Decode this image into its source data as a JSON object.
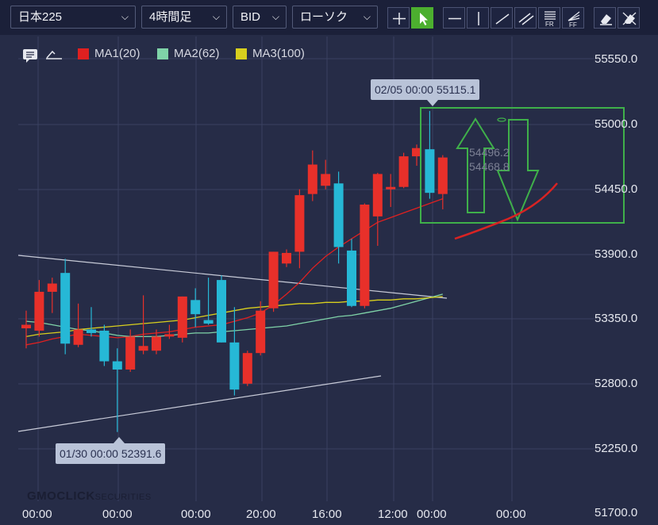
{
  "toolbar": {
    "symbol": "日本225",
    "timeframe": "4時間足",
    "price_type": "BID",
    "chart_style": "ローソク",
    "tools": [
      "crosshair-icon",
      "pointer-icon",
      "horizontal-line-icon",
      "vertical-line-icon",
      "trend-line-icon",
      "channel-icon",
      "fib-retracement-icon",
      "fib-fan-icon",
      "eraser-icon",
      "clear-all-icon"
    ]
  },
  "legend": {
    "ma1": {
      "label": "MA1(20)",
      "color": "#e02020"
    },
    "ma2": {
      "label": "MA2(62)",
      "color": "#7fd3a8"
    },
    "ma3": {
      "label": "MA3(100)",
      "color": "#d8cf1e"
    }
  },
  "price_axis": [
    "55550.0",
    "55000.0",
    "54450.0",
    "53900.0",
    "53350.0",
    "52800.0",
    "52250.0",
    "51700.0"
  ],
  "time_axis": [
    "00:00",
    "00:00",
    "00:00",
    "20:00",
    "16:00",
    "12:00",
    "00:00",
    "00:00"
  ],
  "tooltips": {
    "high": "02/05 00:00 55115.1",
    "low": "01/30 00:00 52391.6"
  },
  "overlay_text": {
    "a": "54496.2",
    "b": "54468.8"
  },
  "logo": {
    "main": "GMOCLICK",
    "sub": "SECURITIES"
  },
  "colors": {
    "up": "#e8302a",
    "down": "#26b8d6",
    "grid": "#3a4161",
    "annotation": "#3fb04a"
  },
  "chart_data": {
    "type": "candlestick",
    "ylim": [
      51700,
      55800
    ],
    "candles": [
      {
        "o": 53270,
        "h": 53420,
        "l": 53100,
        "c": 53300
      },
      {
        "o": 53250,
        "h": 53680,
        "l": 53200,
        "c": 53580
      },
      {
        "o": 53580,
        "h": 53700,
        "l": 53400,
        "c": 53650
      },
      {
        "o": 53740,
        "h": 53860,
        "l": 53050,
        "c": 53140
      },
      {
        "o": 53130,
        "h": 53480,
        "l": 53110,
        "c": 53260
      },
      {
        "o": 53260,
        "h": 53450,
        "l": 53200,
        "c": 53230
      },
      {
        "o": 53250,
        "h": 53300,
        "l": 52950,
        "c": 52990
      },
      {
        "o": 52990,
        "h": 53100,
        "l": 52390,
        "c": 52920
      },
      {
        "o": 52920,
        "h": 53260,
        "l": 52900,
        "c": 53200
      },
      {
        "o": 53080,
        "h": 53550,
        "l": 53050,
        "c": 53120
      },
      {
        "o": 53080,
        "h": 53260,
        "l": 53050,
        "c": 53200
      },
      {
        "o": 53200,
        "h": 53300,
        "l": 53180,
        "c": 53220
      },
      {
        "o": 53190,
        "h": 53540,
        "l": 53150,
        "c": 53540
      },
      {
        "o": 53510,
        "h": 53610,
        "l": 53280,
        "c": 53390
      },
      {
        "o": 53340,
        "h": 53700,
        "l": 53300,
        "c": 53310
      },
      {
        "o": 53680,
        "h": 53720,
        "l": 53150,
        "c": 53150
      },
      {
        "o": 53150,
        "h": 53450,
        "l": 52700,
        "c": 52750
      },
      {
        "o": 52800,
        "h": 53080,
        "l": 52780,
        "c": 53060
      },
      {
        "o": 53060,
        "h": 53500,
        "l": 53040,
        "c": 53420
      },
      {
        "o": 53440,
        "h": 53920,
        "l": 53410,
        "c": 53920
      },
      {
        "o": 53820,
        "h": 53940,
        "l": 53790,
        "c": 53910
      },
      {
        "o": 53920,
        "h": 54450,
        "l": 53780,
        "c": 54400
      },
      {
        "o": 54410,
        "h": 54780,
        "l": 54350,
        "c": 54660
      },
      {
        "o": 54480,
        "h": 54700,
        "l": 54450,
        "c": 54580
      },
      {
        "o": 54500,
        "h": 54600,
        "l": 53820,
        "c": 53960
      },
      {
        "o": 53930,
        "h": 54030,
        "l": 53450,
        "c": 53460
      },
      {
        "o": 53460,
        "h": 54330,
        "l": 53440,
        "c": 54320
      },
      {
        "o": 54220,
        "h": 54590,
        "l": 53970,
        "c": 54580
      },
      {
        "o": 54450,
        "h": 54580,
        "l": 54300,
        "c": 54470
      },
      {
        "o": 54470,
        "h": 54760,
        "l": 54460,
        "c": 54730
      },
      {
        "o": 54730,
        "h": 54830,
        "l": 54650,
        "c": 54800
      },
      {
        "o": 54790,
        "h": 55115,
        "l": 54370,
        "c": 54420
      },
      {
        "o": 54410,
        "h": 54740,
        "l": 54280,
        "c": 54720
      }
    ],
    "ma1": [
      53130,
      53150,
      53180,
      53200,
      53220,
      53210,
      53200,
      53190,
      53200,
      53220,
      53230,
      53240,
      53260,
      53280,
      53290,
      53300,
      53330,
      53360,
      53400,
      53470,
      53560,
      53660,
      53780,
      53880,
      53960,
      54030,
      54100,
      54170,
      54210,
      54250,
      54290,
      54330,
      54370
    ],
    "ma2": [
      53330,
      53320,
      53300,
      53280,
      53260,
      53250,
      53230,
      53210,
      53200,
      53200,
      53200,
      53210,
      53220,
      53230,
      53230,
      53240,
      53250,
      53260,
      53270,
      53280,
      53290,
      53310,
      53330,
      53350,
      53370,
      53380,
      53400,
      53420,
      53440,
      53470,
      53500,
      53530,
      53560
    ],
    "ma3": [
      53200,
      53220,
      53230,
      53240,
      53260,
      53270,
      53280,
      53290,
      53300,
      53310,
      53320,
      53330,
      53340,
      53360,
      53380,
      53400,
      53420,
      53440,
      53450,
      53460,
      53470,
      53480,
      53480,
      53490,
      53490,
      53500,
      53500,
      53510,
      53510,
      53520,
      53520,
      53530,
      53540
    ]
  }
}
